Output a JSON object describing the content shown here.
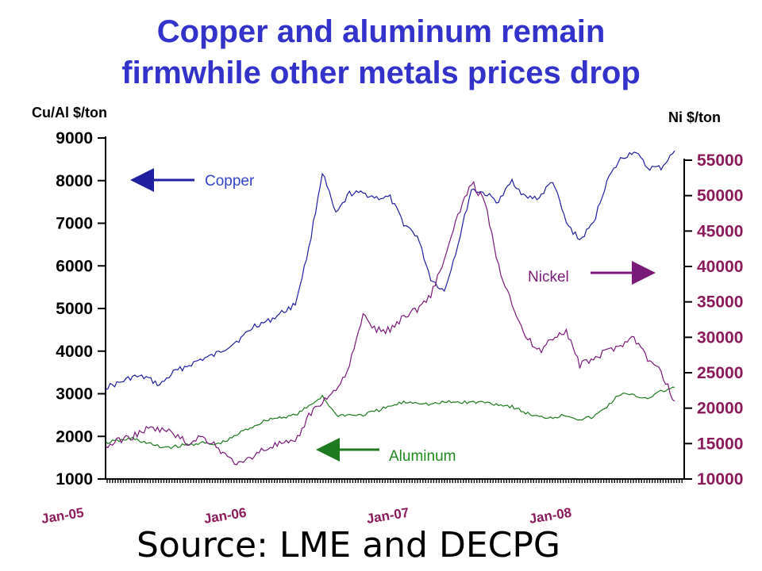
{
  "title_line1": "Copper and aluminum remain",
  "title_line2": "firmwhile other metals prices drop",
  "source": "Source: LME and DECPG",
  "colors": {
    "title": "#3333cc",
    "copper": "#1f1fa0",
    "aluminum": "#1e7a1e",
    "nickel": "#7a1a78",
    "right_axis": "#8b1a5a"
  },
  "chart_data": {
    "type": "line",
    "left_axis_label": "Cu/Al $/ton",
    "right_axis_label": "Ni $/ton",
    "left_ylim": [
      1000,
      9000
    ],
    "right_ylim": [
      10000,
      55000
    ],
    "left_ticks": [
      "1000",
      "2000",
      "3000",
      "4000",
      "5000",
      "6000",
      "7000",
      "8000",
      "9000"
    ],
    "right_ticks": [
      "10000",
      "15000",
      "20000",
      "25000",
      "30000",
      "35000",
      "40000",
      "45000",
      "50000",
      "55000"
    ],
    "x_tick_labels": [
      "Jan-05",
      "Jan-06",
      "Jan-07",
      "Jan-08"
    ],
    "x_range": [
      "2005-01",
      "2008-07"
    ],
    "annotations": {
      "copper": "Copper",
      "aluminum": "Aluminum",
      "nickel": "Nickel"
    },
    "series": [
      {
        "name": "Copper",
        "axis": "left",
        "x": [
          "2005-01",
          "2005-02",
          "2005-03",
          "2005-04",
          "2005-05",
          "2005-06",
          "2005-07",
          "2005-08",
          "2005-09",
          "2005-10",
          "2005-11",
          "2005-12",
          "2006-01",
          "2006-02",
          "2006-03",
          "2006-04",
          "2006-05",
          "2006-06",
          "2006-07",
          "2006-08",
          "2006-09",
          "2006-10",
          "2006-11",
          "2006-12",
          "2007-01",
          "2007-02",
          "2007-03",
          "2007-04",
          "2007-05",
          "2007-06",
          "2007-07",
          "2007-08",
          "2007-09",
          "2007-10",
          "2007-11",
          "2007-12",
          "2008-01",
          "2008-02",
          "2008-03",
          "2008-04",
          "2008-05",
          "2008-06",
          "2008-07"
        ],
        "values": [
          3150,
          3250,
          3400,
          3380,
          3200,
          3500,
          3650,
          3800,
          3900,
          4100,
          4300,
          4600,
          4700,
          4900,
          5100,
          6400,
          8200,
          7200,
          7700,
          7700,
          7600,
          7600,
          7000,
          6700,
          5700,
          5400,
          6500,
          7800,
          7700,
          7500,
          8000,
          7600,
          7600,
          8000,
          7000,
          6600,
          7000,
          8000,
          8500,
          8700,
          8300,
          8300,
          8700
        ]
      },
      {
        "name": "Aluminum",
        "axis": "left",
        "x": [
          "2005-01",
          "2005-02",
          "2005-03",
          "2005-04",
          "2005-05",
          "2005-06",
          "2005-07",
          "2005-08",
          "2005-09",
          "2005-10",
          "2005-11",
          "2005-12",
          "2006-01",
          "2006-02",
          "2006-03",
          "2006-04",
          "2006-05",
          "2006-06",
          "2006-07",
          "2006-08",
          "2006-09",
          "2006-10",
          "2006-11",
          "2006-12",
          "2007-01",
          "2007-02",
          "2007-03",
          "2007-04",
          "2007-05",
          "2007-06",
          "2007-07",
          "2007-08",
          "2007-09",
          "2007-10",
          "2007-11",
          "2007-12",
          "2008-01",
          "2008-02",
          "2008-03",
          "2008-04",
          "2008-05",
          "2008-06",
          "2008-07"
        ],
        "values": [
          1850,
          1900,
          1950,
          1850,
          1750,
          1750,
          1800,
          1850,
          1800,
          1900,
          2100,
          2250,
          2400,
          2450,
          2500,
          2700,
          2950,
          2500,
          2500,
          2500,
          2600,
          2700,
          2800,
          2800,
          2750,
          2800,
          2800,
          2800,
          2800,
          2750,
          2700,
          2550,
          2450,
          2450,
          2500,
          2400,
          2450,
          2700,
          3000,
          2950,
          2900,
          3050,
          3150
        ]
      },
      {
        "name": "Nickel",
        "axis": "right",
        "x": [
          "2005-01",
          "2005-02",
          "2005-03",
          "2005-04",
          "2005-05",
          "2005-06",
          "2005-07",
          "2005-08",
          "2005-09",
          "2005-10",
          "2005-11",
          "2005-12",
          "2006-01",
          "2006-02",
          "2006-03",
          "2006-04",
          "2006-05",
          "2006-06",
          "2006-07",
          "2006-08",
          "2006-09",
          "2006-10",
          "2006-11",
          "2006-12",
          "2007-01",
          "2007-02",
          "2007-03",
          "2007-04",
          "2007-05",
          "2007-06",
          "2007-07",
          "2007-08",
          "2007-09",
          "2007-10",
          "2007-11",
          "2007-12",
          "2008-01",
          "2008-02",
          "2008-03",
          "2008-04",
          "2008-05",
          "2008-06",
          "2008-07"
        ],
        "values": [
          14500,
          15500,
          16000,
          17000,
          17000,
          16500,
          15000,
          16000,
          15000,
          13000,
          12000,
          13500,
          14500,
          15000,
          15000,
          19000,
          21000,
          22500,
          26000,
          33000,
          31000,
          31000,
          33000,
          34000,
          36000,
          41000,
          47000,
          52000,
          49000,
          40000,
          35000,
          30000,
          28000,
          30000,
          31000,
          26000,
          27000,
          28000,
          29000,
          30000,
          27000,
          25000,
          21000
        ]
      }
    ]
  }
}
